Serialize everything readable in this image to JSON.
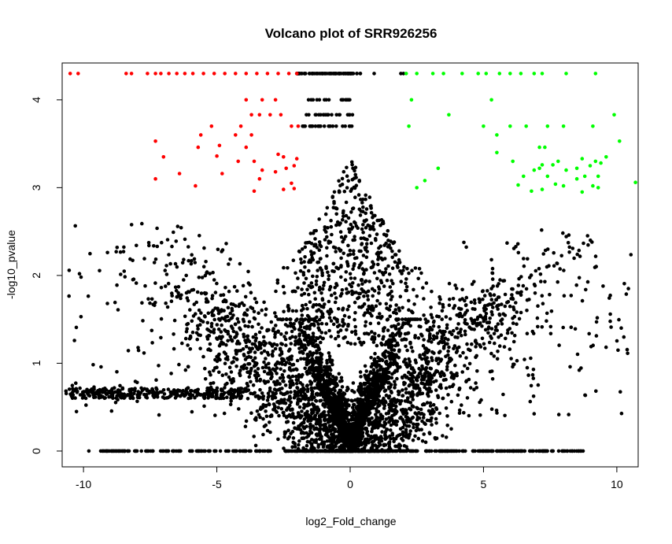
{
  "chart_data": {
    "type": "scatter",
    "title": "Volcano plot of SRR926256",
    "xlabel": "log2_Fold_change",
    "ylabel": "-log10_pvalue",
    "xlim": [
      -10.8,
      10.8
    ],
    "ylim": [
      -0.18,
      4.42
    ],
    "x_ticks": [
      -10,
      -5,
      0,
      5,
      10
    ],
    "y_ticks": [
      0,
      1,
      2,
      3,
      4
    ],
    "grid": false,
    "legend": "none",
    "colors": {
      "not_significant": "#000000",
      "down_significant": "#ff0000",
      "up_significant": "#00ff00"
    },
    "series": [
      {
        "key": "down_significant",
        "color": "#ff0000",
        "points": [
          [
            -10.5,
            4.3
          ],
          [
            -10.2,
            4.3
          ],
          [
            -8.4,
            4.3
          ],
          [
            -8.2,
            4.3
          ],
          [
            -7.6,
            4.3
          ],
          [
            -7.3,
            4.3
          ],
          [
            -7.1,
            4.3
          ],
          [
            -6.8,
            4.3
          ],
          [
            -6.5,
            4.3
          ],
          [
            -6.2,
            4.3
          ],
          [
            -5.9,
            4.3
          ],
          [
            -5.5,
            4.3
          ],
          [
            -5.1,
            4.3
          ],
          [
            -4.7,
            4.3
          ],
          [
            -4.3,
            4.3
          ],
          [
            -3.9,
            4.3
          ],
          [
            -3.5,
            4.3
          ],
          [
            -3.1,
            4.3
          ],
          [
            -2.7,
            4.3
          ],
          [
            -2.3,
            4.3
          ],
          [
            -2.0,
            4.3
          ],
          [
            -3.9,
            4.0
          ],
          [
            -3.3,
            4.0
          ],
          [
            -2.8,
            4.0
          ],
          [
            -3.7,
            3.83
          ],
          [
            -3.4,
            3.83
          ],
          [
            -2.6,
            3.83
          ],
          [
            -3.0,
            3.83
          ],
          [
            -4.1,
            3.7
          ],
          [
            -2.2,
            3.7
          ],
          [
            -1.95,
            3.7
          ],
          [
            -5.2,
            3.7
          ],
          [
            -5.6,
            3.6
          ],
          [
            -4.3,
            3.6
          ],
          [
            -3.7,
            3.6
          ],
          [
            -7.3,
            3.53
          ],
          [
            -5.7,
            3.46
          ],
          [
            -4.9,
            3.48
          ],
          [
            -3.9,
            3.46
          ],
          [
            -7.0,
            3.35
          ],
          [
            -5.0,
            3.36
          ],
          [
            -4.2,
            3.3
          ],
          [
            -3.6,
            3.3
          ],
          [
            -2.7,
            3.38
          ],
          [
            -2.5,
            3.35
          ],
          [
            -2.0,
            3.33
          ],
          [
            -6.4,
            3.16
          ],
          [
            -4.8,
            3.16
          ],
          [
            -3.3,
            3.2
          ],
          [
            -2.8,
            3.18
          ],
          [
            -2.4,
            3.22
          ],
          [
            -2.1,
            3.25
          ],
          [
            -7.3,
            3.1
          ],
          [
            -3.4,
            3.1
          ],
          [
            -2.2,
            3.05
          ],
          [
            -5.8,
            3.02
          ],
          [
            -3.6,
            2.96
          ],
          [
            -2.5,
            2.98
          ],
          [
            -2.1,
            2.99
          ]
        ]
      },
      {
        "key": "up_significant",
        "color": "#00ff00",
        "points": [
          [
            2.1,
            4.3
          ],
          [
            2.5,
            4.3
          ],
          [
            3.1,
            4.3
          ],
          [
            3.5,
            4.3
          ],
          [
            4.2,
            4.3
          ],
          [
            4.8,
            4.3
          ],
          [
            5.1,
            4.3
          ],
          [
            5.6,
            4.3
          ],
          [
            6.0,
            4.3
          ],
          [
            6.4,
            4.3
          ],
          [
            6.9,
            4.3
          ],
          [
            7.2,
            4.3
          ],
          [
            8.1,
            4.3
          ],
          [
            9.2,
            4.3
          ],
          [
            2.3,
            4.0
          ],
          [
            5.3,
            4.0
          ],
          [
            3.7,
            3.83
          ],
          [
            9.9,
            3.83
          ],
          [
            2.2,
            3.7
          ],
          [
            5.0,
            3.7
          ],
          [
            6.0,
            3.7
          ],
          [
            6.6,
            3.7
          ],
          [
            7.4,
            3.7
          ],
          [
            8.0,
            3.7
          ],
          [
            9.1,
            3.7
          ],
          [
            5.5,
            3.6
          ],
          [
            7.1,
            3.46
          ],
          [
            7.3,
            3.46
          ],
          [
            10.1,
            3.53
          ],
          [
            5.5,
            3.4
          ],
          [
            9.6,
            3.35
          ],
          [
            6.1,
            3.3
          ],
          [
            7.8,
            3.3
          ],
          [
            8.7,
            3.33
          ],
          [
            9.2,
            3.3
          ],
          [
            9.4,
            3.28
          ],
          [
            7.2,
            3.26
          ],
          [
            7.6,
            3.26
          ],
          [
            3.3,
            3.22
          ],
          [
            6.9,
            3.2
          ],
          [
            7.1,
            3.22
          ],
          [
            8.1,
            3.2
          ],
          [
            8.5,
            3.22
          ],
          [
            9.0,
            3.25
          ],
          [
            6.5,
            3.13
          ],
          [
            7.4,
            3.13
          ],
          [
            8.8,
            3.13
          ],
          [
            8.5,
            3.1
          ],
          [
            9.3,
            3.13
          ],
          [
            2.8,
            3.08
          ],
          [
            10.7,
            3.06
          ],
          [
            6.3,
            3.03
          ],
          [
            7.7,
            3.04
          ],
          [
            8.0,
            3.02
          ],
          [
            2.5,
            3.0
          ],
          [
            6.8,
            2.96
          ],
          [
            7.2,
            2.98
          ],
          [
            8.7,
            2.95
          ],
          [
            9.1,
            3.02
          ],
          [
            9.3,
            3.0
          ]
        ]
      }
    ]
  }
}
